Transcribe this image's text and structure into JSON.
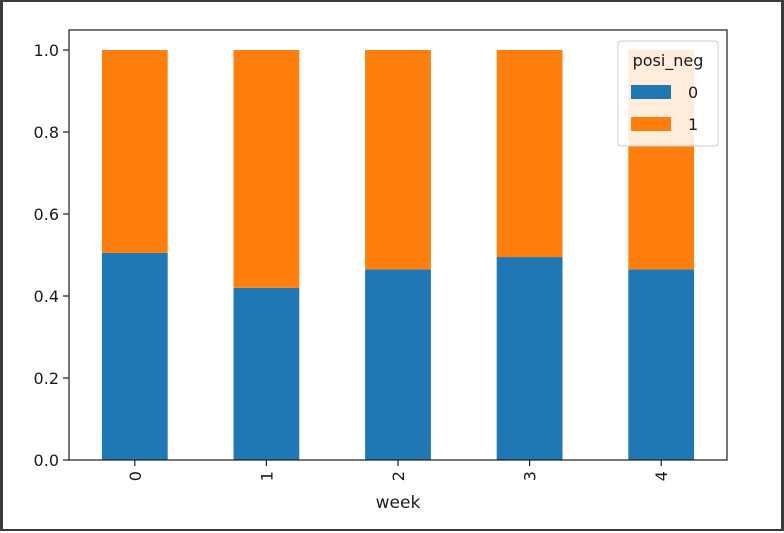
{
  "chart_data": {
    "type": "bar",
    "stacked": true,
    "categories": [
      "0",
      "1",
      "2",
      "3",
      "4"
    ],
    "series": [
      {
        "name": "0",
        "values": [
          0.505,
          0.42,
          0.465,
          0.495,
          0.465
        ]
      },
      {
        "name": "1",
        "values": [
          0.495,
          0.58,
          0.535,
          0.505,
          0.535
        ]
      }
    ],
    "colors": [
      "#1f77b4",
      "#ff7f0e"
    ],
    "xlabel": "week",
    "ylabel": "",
    "ylim": [
      0.0,
      1.0
    ],
    "yticks": [
      "0.0",
      "0.2",
      "0.4",
      "0.6",
      "0.8",
      "1.0"
    ],
    "legend": {
      "title": "posi_neg",
      "placement": "top-right"
    },
    "grid": false
  }
}
